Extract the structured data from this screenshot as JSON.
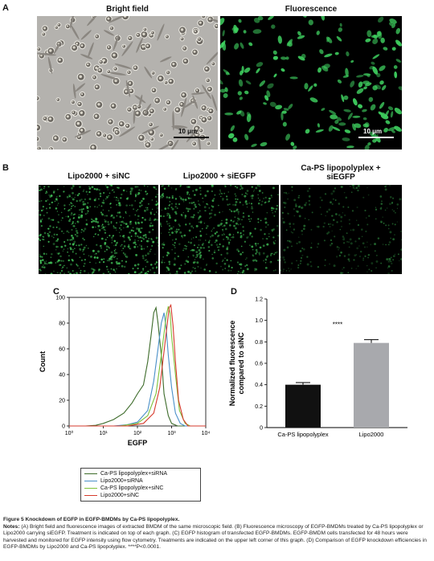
{
  "panelA": {
    "letter": "A",
    "bright_title": "Bright field",
    "fluor_title": "Fluorescence",
    "scale_label": "10 μm"
  },
  "panelB": {
    "letter": "B",
    "titles": [
      "Lipo2000 + siNC",
      "Lipo2000 + siEGFP",
      "Ca-PS lipopolyplex +\nsiEGFP"
    ]
  },
  "panelC": {
    "letter": "C"
  },
  "panelD": {
    "letter": "D",
    "significance": "****"
  },
  "colors": {
    "green_dark": "#3d6b2a",
    "blue": "#4a90c8",
    "green_light": "#7ec23a",
    "red": "#d63a2c",
    "bar_black": "#111111",
    "bar_gray": "#a8a9ad",
    "fluor_green": "#3fd160"
  },
  "chart_data": [
    {
      "type": "line",
      "xlabel": "EGFP",
      "ylabel": "Count",
      "x_scale": "log",
      "xlim": [
        1,
        10000
      ],
      "ylim": [
        0,
        100
      ],
      "x_ticks": [
        "10⁰",
        "10¹",
        "10²",
        "10³",
        "10⁴"
      ],
      "y_ticks": [
        "0",
        "20",
        "40",
        "60",
        "80",
        "100"
      ],
      "legend_placement": "below",
      "series": [
        {
          "name": "Ca-PS lipopolyplex+siRNA",
          "color": "#3d6b2a",
          "points": [
            [
              1,
              0
            ],
            [
              3,
              0
            ],
            [
              6,
              0.5
            ],
            [
              10,
              2
            ],
            [
              20,
              5
            ],
            [
              40,
              10
            ],
            [
              70,
              18
            ],
            [
              100,
              25
            ],
            [
              150,
              32
            ],
            [
              200,
              50
            ],
            [
              250,
              70
            ],
            [
              300,
              88
            ],
            [
              350,
              92
            ],
            [
              400,
              80
            ],
            [
              500,
              55
            ],
            [
              600,
              25
            ],
            [
              800,
              8
            ],
            [
              1000,
              2
            ],
            [
              1500,
              0
            ],
            [
              10000,
              0
            ]
          ]
        },
        {
          "name": "Lipo2000+siRNA",
          "color": "#4a90c8",
          "points": [
            [
              1,
              0
            ],
            [
              20,
              0
            ],
            [
              50,
              1
            ],
            [
              100,
              3
            ],
            [
              200,
              12
            ],
            [
              300,
              35
            ],
            [
              400,
              60
            ],
            [
              500,
              80
            ],
            [
              600,
              88
            ],
            [
              700,
              75
            ],
            [
              800,
              55
            ],
            [
              1000,
              30
            ],
            [
              1300,
              10
            ],
            [
              1800,
              2
            ],
            [
              2500,
              0
            ],
            [
              10000,
              0
            ]
          ]
        },
        {
          "name": "Ca-PS lipopolyplex+siNC",
          "color": "#7ec23a",
          "points": [
            [
              1,
              0
            ],
            [
              30,
              0
            ],
            [
              100,
              2
            ],
            [
              200,
              8
            ],
            [
              350,
              25
            ],
            [
              500,
              55
            ],
            [
              600,
              72
            ],
            [
              700,
              86
            ],
            [
              800,
              93
            ],
            [
              900,
              88
            ],
            [
              1000,
              70
            ],
            [
              1300,
              40
            ],
            [
              1700,
              12
            ],
            [
              2500,
              2
            ],
            [
              3500,
              0
            ],
            [
              10000,
              0
            ]
          ]
        },
        {
          "name": "Lipo2000+siNC",
          "color": "#d63a2c",
          "points": [
            [
              1,
              0
            ],
            [
              50,
              0
            ],
            [
              150,
              2
            ],
            [
              300,
              10
            ],
            [
              450,
              30
            ],
            [
              600,
              58
            ],
            [
              750,
              80
            ],
            [
              850,
              92
            ],
            [
              950,
              94
            ],
            [
              1100,
              78
            ],
            [
              1300,
              50
            ],
            [
              1600,
              20
            ],
            [
              2200,
              5
            ],
            [
              3000,
              0
            ],
            [
              10000,
              0
            ]
          ]
        }
      ]
    },
    {
      "type": "bar",
      "ylabel": "Normalized fluorescence\ncompared to siNC",
      "ylim": [
        0,
        1.2
      ],
      "y_ticks": [
        "0",
        "0.2",
        "0.4",
        "0.6",
        "0.8",
        "1.0",
        "1.2"
      ],
      "categories": [
        "Ca-PS lipopolyplex",
        "Lipo2000"
      ],
      "values": [
        0.4,
        0.79
      ],
      "errors": [
        0.02,
        0.03
      ],
      "colors": [
        "#111111",
        "#a8a9ad"
      ]
    }
  ],
  "caption": {
    "title": "Figure 5 Knockdown of EGFP in EGFP-BMDMs by Ca-PS lipopolyplex.",
    "notes_label": "Notes:",
    "notes_text": "(A) Bright field and fluorescence images of extracted BMDM of the same microscopic field. (B) Fluorescence microscopy of EGFP-BMDMs treated by Ca-PS lipopolyplex or Lipo2000 carrying siEGFP. Treatment is indicated on top of each graph. (C) EGFP histogram of transfected EGFP-BMDMs. EGFP-BMDM cells transfected for 48 hours were harvested and monitored for EGFP intensity using flow cytometry. Treatments are indicated on the upper left corner of this graph. (D) Comparison of EGFP knockdown efficiencies in EGFP-BMDMs by Lipo2000 and Ca-PS lipopolyplex. ****P<0.0001."
  }
}
